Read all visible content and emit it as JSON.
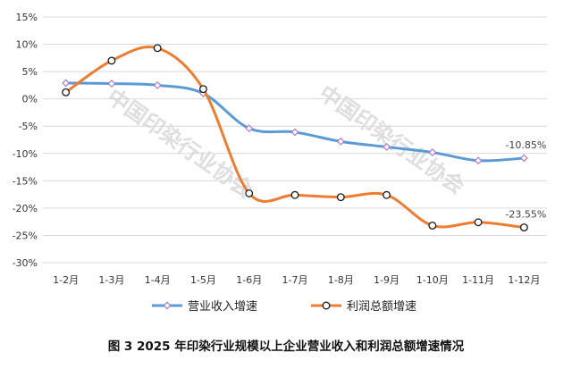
{
  "caption": "图 3 2025 年印染行业规模以上企业营业收入和利润总额增速情况",
  "watermark": "中国印染行业协会",
  "chart_data": {
    "type": "line",
    "categories": [
      "1-2月",
      "1-3月",
      "1-4月",
      "1-5月",
      "1-6月",
      "1-7月",
      "1-8月",
      "1-9月",
      "1-10月",
      "1-11月",
      "1-12月"
    ],
    "yticks": [
      "15%",
      "10%",
      "5%",
      "0%",
      "-5%",
      "-10%",
      "-15%",
      "-20%",
      "-25%",
      "-30%"
    ],
    "ylim": [
      -30,
      15
    ],
    "ytick_step": 5,
    "grid": true,
    "legend_position": "bottom",
    "series": [
      {
        "name": "营业收入增速",
        "color": "#5b9bd5",
        "marker": "diamond",
        "marker_edge_color": "#b07cc6",
        "values": [
          2.9,
          2.8,
          2.5,
          1.0,
          -5.4,
          -6.1,
          -7.8,
          -8.8,
          -9.8,
          -11.3,
          -10.85
        ],
        "end_label": "-10.85%"
      },
      {
        "name": "利润总额增速",
        "color": "#ed7d31",
        "marker": "circle",
        "marker_edge_color": "#1a1a1a",
        "values": [
          1.2,
          7.0,
          9.3,
          1.8,
          -17.3,
          -17.6,
          -18.0,
          -17.6,
          -23.2,
          -22.6,
          -23.55
        ],
        "end_label": "-23.55%"
      }
    ]
  }
}
